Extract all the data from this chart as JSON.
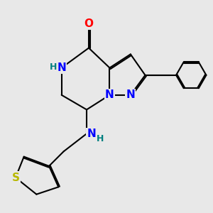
{
  "bg_color": "#e8e8e8",
  "atom_colors": {
    "N": "#0000ff",
    "O": "#ff0000",
    "S": "#b8b800",
    "H_color": "#008080"
  },
  "bond_color": "#000000",
  "bond_width": 1.5
}
